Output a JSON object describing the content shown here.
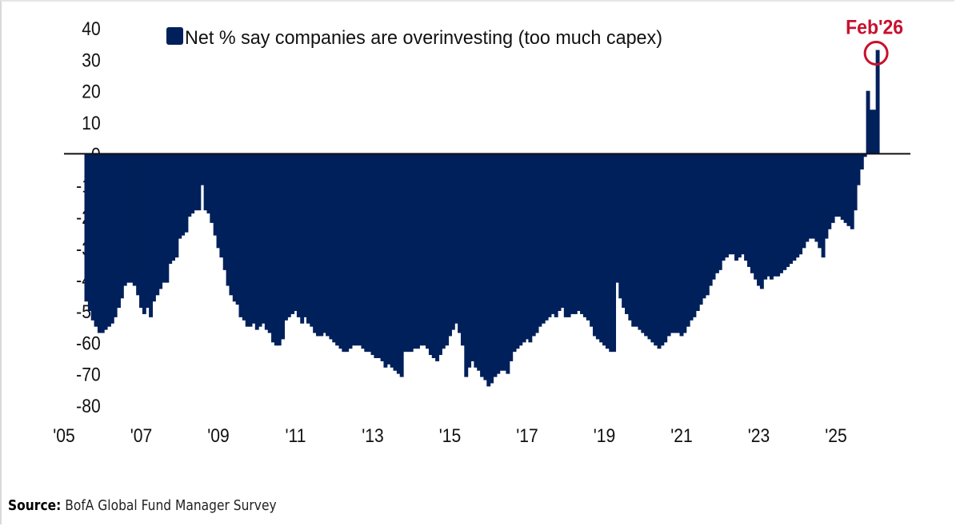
{
  "chart_data": {
    "type": "bar",
    "title": "",
    "legend": {
      "entries": [
        "Net % say companies are overinvesting (too much capex)"
      ],
      "placement": "top-center"
    },
    "xlabel": "",
    "ylabel": "",
    "ylim": [
      -80,
      40
    ],
    "yticks": [
      40,
      30,
      20,
      10,
      0,
      -10,
      -20,
      -30,
      -40,
      -50,
      -60,
      -70,
      -80
    ],
    "xticks": [
      "'05",
      "'07",
      "'09",
      "'11",
      "'13",
      "'15",
      "'17",
      "'19",
      "'21",
      "'23",
      "'25"
    ],
    "xtick_years": [
      2005,
      2007,
      2009,
      2011,
      2013,
      2015,
      2017,
      2019,
      2021,
      2023,
      2025
    ],
    "xlim_years": [
      2005,
      2027.2
    ],
    "grid": false,
    "colors": {
      "bars": "#00205b",
      "annotation": "#c8102e",
      "zero_line": "#111111"
    },
    "annotation": {
      "label": "Feb'26",
      "year": 2026.08,
      "value": 33
    },
    "series": [
      {
        "name": "Net % say companies are overinvesting (too much capex)",
        "points": [
          [
            2005.58,
            -47
          ],
          [
            2005.67,
            -50
          ],
          [
            2005.75,
            -53
          ],
          [
            2005.83,
            -55
          ],
          [
            2005.92,
            -57
          ],
          [
            2006.0,
            -57
          ],
          [
            2006.08,
            -56
          ],
          [
            2006.17,
            -55
          ],
          [
            2006.25,
            -54
          ],
          [
            2006.33,
            -52
          ],
          [
            2006.42,
            -49
          ],
          [
            2006.5,
            -46
          ],
          [
            2006.58,
            -42
          ],
          [
            2006.67,
            -41
          ],
          [
            2006.75,
            -41
          ],
          [
            2006.83,
            -42
          ],
          [
            2006.92,
            -45
          ],
          [
            2007.0,
            -49
          ],
          [
            2007.08,
            -51
          ],
          [
            2007.17,
            -49
          ],
          [
            2007.25,
            -52
          ],
          [
            2007.33,
            -47
          ],
          [
            2007.42,
            -45
          ],
          [
            2007.5,
            -43
          ],
          [
            2007.58,
            -41
          ],
          [
            2007.67,
            -41
          ],
          [
            2007.75,
            -35
          ],
          [
            2007.83,
            -34
          ],
          [
            2007.92,
            -33
          ],
          [
            2008.0,
            -27
          ],
          [
            2008.08,
            -26
          ],
          [
            2008.17,
            -25
          ],
          [
            2008.25,
            -20
          ],
          [
            2008.33,
            -19
          ],
          [
            2008.42,
            -18
          ],
          [
            2008.5,
            -18
          ],
          [
            2008.58,
            -10
          ],
          [
            2008.67,
            -18
          ],
          [
            2008.75,
            -19
          ],
          [
            2008.83,
            -22
          ],
          [
            2008.92,
            -26
          ],
          [
            2009.0,
            -30
          ],
          [
            2009.08,
            -33
          ],
          [
            2009.17,
            -37
          ],
          [
            2009.25,
            -42
          ],
          [
            2009.33,
            -45
          ],
          [
            2009.42,
            -47
          ],
          [
            2009.5,
            -48
          ],
          [
            2009.58,
            -52
          ],
          [
            2009.67,
            -53
          ],
          [
            2009.75,
            -55
          ],
          [
            2009.83,
            -55
          ],
          [
            2009.92,
            -54
          ],
          [
            2010.0,
            -56
          ],
          [
            2010.08,
            -55
          ],
          [
            2010.17,
            -54
          ],
          [
            2010.25,
            -56
          ],
          [
            2010.33,
            -57
          ],
          [
            2010.42,
            -60
          ],
          [
            2010.5,
            -61
          ],
          [
            2010.58,
            -61
          ],
          [
            2010.67,
            -59
          ],
          [
            2010.75,
            -53
          ],
          [
            2010.83,
            -52
          ],
          [
            2010.92,
            -51
          ],
          [
            2011.0,
            -50
          ],
          [
            2011.08,
            -52
          ],
          [
            2011.17,
            -54
          ],
          [
            2011.25,
            -52
          ],
          [
            2011.33,
            -54
          ],
          [
            2011.42,
            -55
          ],
          [
            2011.5,
            -57
          ],
          [
            2011.58,
            -58
          ],
          [
            2011.67,
            -58
          ],
          [
            2011.75,
            -57
          ],
          [
            2011.83,
            -58
          ],
          [
            2011.92,
            -59
          ],
          [
            2012.0,
            -60
          ],
          [
            2012.08,
            -61
          ],
          [
            2012.17,
            -62
          ],
          [
            2012.25,
            -63
          ],
          [
            2012.33,
            -63
          ],
          [
            2012.42,
            -62
          ],
          [
            2012.5,
            -61
          ],
          [
            2012.58,
            -61
          ],
          [
            2012.67,
            -61
          ],
          [
            2012.75,
            -62
          ],
          [
            2012.83,
            -63
          ],
          [
            2012.92,
            -63
          ],
          [
            2013.0,
            -64
          ],
          [
            2013.08,
            -65
          ],
          [
            2013.17,
            -65
          ],
          [
            2013.25,
            -66
          ],
          [
            2013.33,
            -68
          ],
          [
            2013.42,
            -67
          ],
          [
            2013.5,
            -68
          ],
          [
            2013.58,
            -69
          ],
          [
            2013.67,
            -70
          ],
          [
            2013.75,
            -71
          ],
          [
            2013.83,
            -63
          ],
          [
            2013.92,
            -63
          ],
          [
            2014.0,
            -63
          ],
          [
            2014.08,
            -62
          ],
          [
            2014.17,
            -62
          ],
          [
            2014.25,
            -61
          ],
          [
            2014.33,
            -61
          ],
          [
            2014.42,
            -62
          ],
          [
            2014.5,
            -64
          ],
          [
            2014.58,
            -65
          ],
          [
            2014.67,
            -66
          ],
          [
            2014.75,
            -64
          ],
          [
            2014.83,
            -62
          ],
          [
            2014.92,
            -61
          ],
          [
            2015.0,
            -58
          ],
          [
            2015.08,
            -56
          ],
          [
            2015.17,
            -54
          ],
          [
            2015.25,
            -57
          ],
          [
            2015.33,
            -61
          ],
          [
            2015.42,
            -71
          ],
          [
            2015.5,
            -68
          ],
          [
            2015.58,
            -66
          ],
          [
            2015.67,
            -68
          ],
          [
            2015.75,
            -69
          ],
          [
            2015.83,
            -71
          ],
          [
            2015.92,
            -72
          ],
          [
            2016.0,
            -74
          ],
          [
            2016.08,
            -73
          ],
          [
            2016.17,
            -71
          ],
          [
            2016.25,
            -70
          ],
          [
            2016.33,
            -69
          ],
          [
            2016.42,
            -69
          ],
          [
            2016.5,
            -70
          ],
          [
            2016.58,
            -66
          ],
          [
            2016.67,
            -63
          ],
          [
            2016.75,
            -62
          ],
          [
            2016.83,
            -61
          ],
          [
            2016.92,
            -60
          ],
          [
            2017.0,
            -59
          ],
          [
            2017.08,
            -60
          ],
          [
            2017.17,
            -58
          ],
          [
            2017.25,
            -57
          ],
          [
            2017.33,
            -55
          ],
          [
            2017.42,
            -54
          ],
          [
            2017.5,
            -53
          ],
          [
            2017.58,
            -52
          ],
          [
            2017.67,
            -51
          ],
          [
            2017.75,
            -52
          ],
          [
            2017.83,
            -50
          ],
          [
            2017.92,
            -49
          ],
          [
            2018.0,
            -52
          ],
          [
            2018.08,
            -52
          ],
          [
            2018.17,
            -51
          ],
          [
            2018.25,
            -51
          ],
          [
            2018.33,
            -50
          ],
          [
            2018.42,
            -51
          ],
          [
            2018.5,
            -52
          ],
          [
            2018.58,
            -53
          ],
          [
            2018.67,
            -55
          ],
          [
            2018.75,
            -58
          ],
          [
            2018.83,
            -59
          ],
          [
            2018.92,
            -60
          ],
          [
            2019.0,
            -61
          ],
          [
            2019.08,
            -62
          ],
          [
            2019.17,
            -63
          ],
          [
            2019.25,
            -63
          ],
          [
            2019.33,
            -41
          ],
          [
            2019.42,
            -46
          ],
          [
            2019.5,
            -49
          ],
          [
            2019.58,
            -51
          ],
          [
            2019.67,
            -53
          ],
          [
            2019.75,
            -55
          ],
          [
            2019.83,
            -55
          ],
          [
            2019.92,
            -56
          ],
          [
            2020.0,
            -57
          ],
          [
            2020.08,
            -58
          ],
          [
            2020.17,
            -59
          ],
          [
            2020.25,
            -60
          ],
          [
            2020.33,
            -61
          ],
          [
            2020.42,
            -62
          ],
          [
            2020.5,
            -61
          ],
          [
            2020.58,
            -60
          ],
          [
            2020.67,
            -58
          ],
          [
            2020.75,
            -57
          ],
          [
            2020.83,
            -57
          ],
          [
            2020.92,
            -57
          ],
          [
            2021.0,
            -58
          ],
          [
            2021.08,
            -57
          ],
          [
            2021.17,
            -55
          ],
          [
            2021.25,
            -53
          ],
          [
            2021.33,
            -52
          ],
          [
            2021.42,
            -50
          ],
          [
            2021.5,
            -48
          ],
          [
            2021.58,
            -46
          ],
          [
            2021.67,
            -45
          ],
          [
            2021.75,
            -42
          ],
          [
            2021.83,
            -40
          ],
          [
            2021.92,
            -38
          ],
          [
            2022.0,
            -37
          ],
          [
            2022.08,
            -34
          ],
          [
            2022.17,
            -33
          ],
          [
            2022.25,
            -32
          ],
          [
            2022.33,
            -32
          ],
          [
            2022.42,
            -34
          ],
          [
            2022.5,
            -33
          ],
          [
            2022.58,
            -32
          ],
          [
            2022.67,
            -34
          ],
          [
            2022.75,
            -36
          ],
          [
            2022.83,
            -38
          ],
          [
            2022.92,
            -40
          ],
          [
            2023.0,
            -42
          ],
          [
            2023.08,
            -43
          ],
          [
            2023.17,
            -40
          ],
          [
            2023.25,
            -39
          ],
          [
            2023.33,
            -40
          ],
          [
            2023.42,
            -39
          ],
          [
            2023.5,
            -39
          ],
          [
            2023.58,
            -38
          ],
          [
            2023.67,
            -37
          ],
          [
            2023.75,
            -36
          ],
          [
            2023.83,
            -35
          ],
          [
            2023.92,
            -34
          ],
          [
            2024.0,
            -33
          ],
          [
            2024.08,
            -32
          ],
          [
            2024.17,
            -30
          ],
          [
            2024.25,
            -28
          ],
          [
            2024.33,
            -27
          ],
          [
            2024.42,
            -27
          ],
          [
            2024.5,
            -28
          ],
          [
            2024.58,
            -30
          ],
          [
            2024.67,
            -33
          ],
          [
            2024.75,
            -27
          ],
          [
            2024.83,
            -24
          ],
          [
            2024.92,
            -22
          ],
          [
            2025.0,
            -20
          ],
          [
            2025.08,
            -20
          ],
          [
            2025.17,
            -21
          ],
          [
            2025.25,
            -22
          ],
          [
            2025.33,
            -23
          ],
          [
            2025.42,
            -24
          ],
          [
            2025.5,
            -18
          ],
          [
            2025.58,
            -10
          ],
          [
            2025.67,
            -5
          ],
          [
            2025.75,
            -1
          ],
          [
            2025.83,
            20
          ],
          [
            2025.92,
            14
          ],
          [
            2026.0,
            14
          ],
          [
            2026.08,
            33
          ]
        ]
      }
    ]
  },
  "source": {
    "label": "Source:",
    "text": "BofA Global Fund Manager Survey"
  }
}
